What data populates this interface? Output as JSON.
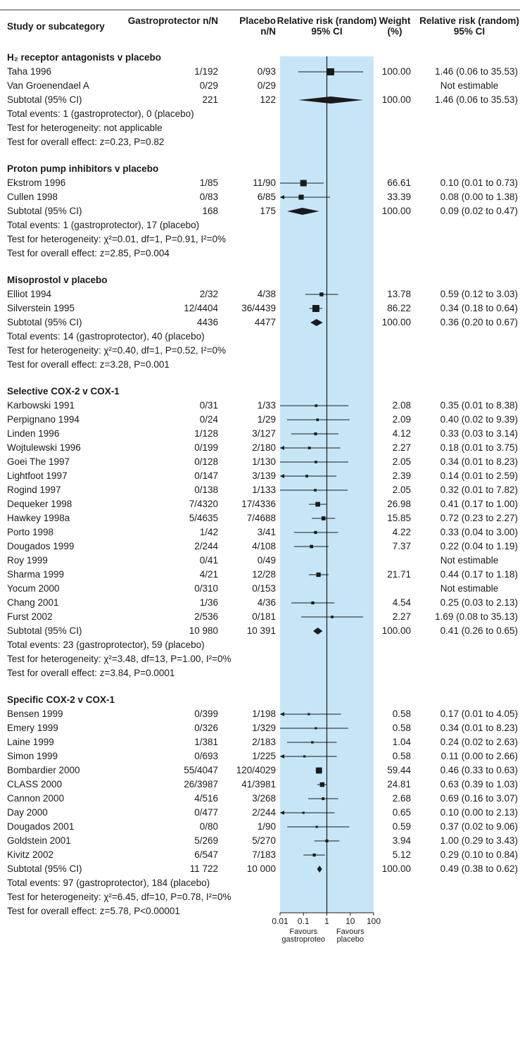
{
  "chart_data": {
    "type": "forest",
    "columns": {
      "study": "Study or subcategory",
      "treat": "Gastroprotector n/N",
      "placebo": "Placebo n/N",
      "plot": "Relative risk (random) 95% CI",
      "weight": "Weight (%)",
      "rr": "Relative risk (random) 95% CI"
    },
    "xaxis": {
      "scale": "log",
      "ticks": [
        "0.01",
        "0.1",
        "1",
        "10",
        "100"
      ],
      "tick_values": [
        0.01,
        0.1,
        1,
        10,
        100
      ],
      "left_label": "Favours gastroproteo",
      "right_label": "Favours placebo"
    },
    "groups": [
      {
        "name": "H₂ receptor antagonists v placebo",
        "studies": [
          {
            "study": "Taha 1996",
            "treat": "1/192",
            "placebo": "0/93",
            "weight": "100.00",
            "rr": "1.46 (0.06 to 35.53)",
            "est": 1.46,
            "lo": 0.06,
            "hi": 35.53,
            "w": 100
          },
          {
            "study": "Van Groenendael A",
            "treat": "0/29",
            "placebo": "0/29",
            "weight": "",
            "rr": "Not estimable",
            "est": null,
            "lo": null,
            "hi": null,
            "w": 0
          }
        ],
        "subtotal": {
          "study": "Subtotal (95% CI)",
          "treat": "221",
          "placebo": "122",
          "weight": "100.00",
          "rr": "1.46 (0.06 to 35.53)",
          "est": 1.46,
          "lo": 0.06,
          "hi": 35.53
        },
        "notes": [
          "Total events: 1 (gastroprotector), 0 (placebo)",
          "Test for heterogeneity: not applicable",
          "Test for overall effect: z=0.23, P=0.82"
        ]
      },
      {
        "name": "Proton pump inhibitors v placebo",
        "studies": [
          {
            "study": "Ekstrom 1996",
            "treat": "1/85",
            "placebo": "11/90",
            "weight": "66.61",
            "rr": "0.10 (0.01 to 0.73)",
            "est": 0.1,
            "lo": 0.01,
            "hi": 0.73,
            "w": 66.61
          },
          {
            "study": "Cullen 1998",
            "treat": "0/83",
            "placebo": "6/85",
            "weight": "33.39",
            "rr": "0.08 (0.00 to 1.38)",
            "est": 0.08,
            "lo": 0.004,
            "hi": 1.38,
            "w": 33.39
          }
        ],
        "subtotal": {
          "study": "Subtotal (95% CI)",
          "treat": "168",
          "placebo": "175",
          "weight": "100.00",
          "rr": "0.09 (0.02 to 0.47)",
          "est": 0.09,
          "lo": 0.02,
          "hi": 0.47
        },
        "notes": [
          "Total events: 1 (gastroprotector), 17 (placebo)",
          "Test for heterogeneity: χ²=0.01, df=1, P=0.91, I²=0%",
          "Test for overall effect: z=2.85, P=0.004"
        ]
      },
      {
        "name": "Misoprostol v placebo",
        "studies": [
          {
            "study": "Elliot 1994",
            "treat": "2/32",
            "placebo": "4/38",
            "weight": "13.78",
            "rr": "0.59 (0.12 to 3.03)",
            "est": 0.59,
            "lo": 0.12,
            "hi": 3.03,
            "w": 13.78
          },
          {
            "study": "Silverstein 1995",
            "treat": "12/4404",
            "placebo": "36/4439",
            "weight": "86.22",
            "rr": "0.34 (0.18 to 0.64)",
            "est": 0.34,
            "lo": 0.18,
            "hi": 0.64,
            "w": 86.22
          }
        ],
        "subtotal": {
          "study": "Subtotal (95% CI)",
          "treat": "4436",
          "placebo": "4477",
          "weight": "100.00",
          "rr": "0.36 (0.20 to 0.67)",
          "est": 0.36,
          "lo": 0.2,
          "hi": 0.67
        },
        "notes": [
          "Total events: 14 (gastroprotector), 40 (placebo)",
          "Test for heterogeneity: χ²=0.40, df=1, P=0.52, I²=0%",
          "Test for overall effect: z=3.28, P=0.001"
        ]
      },
      {
        "name": "Selective COX-2 v COX-1",
        "studies": [
          {
            "study": "Karbowski 1991",
            "treat": "0/31",
            "placebo": "1/33",
            "weight": "2.08",
            "rr": "0.35 (0.01 to 8.38)",
            "est": 0.35,
            "lo": 0.01,
            "hi": 8.38,
            "w": 2.08
          },
          {
            "study": "Perpignano 1994",
            "treat": "0/24",
            "placebo": "1/29",
            "weight": "2.09",
            "rr": "0.40 (0.02 to 9.39)",
            "est": 0.4,
            "lo": 0.02,
            "hi": 9.39,
            "w": 2.09
          },
          {
            "study": "Linden 1996",
            "treat": "1/128",
            "placebo": "3/127",
            "weight": "4.12",
            "rr": "0.33 (0.03 to 3.14)",
            "est": 0.33,
            "lo": 0.03,
            "hi": 3.14,
            "w": 4.12
          },
          {
            "study": "Wojtulewski 1996",
            "treat": "0/199",
            "placebo": "2/180",
            "weight": "2.27",
            "rr": "0.18 (0.01 to 3.75)",
            "est": 0.18,
            "lo": 0.006,
            "hi": 3.75,
            "w": 2.27
          },
          {
            "study": "Goei The 1997",
            "treat": "0/128",
            "placebo": "1/130",
            "weight": "2.05",
            "rr": "0.34 (0.01 to 8.23)",
            "est": 0.34,
            "lo": 0.01,
            "hi": 8.23,
            "w": 2.05
          },
          {
            "study": "Lightfoot 1997",
            "treat": "0/147",
            "placebo": "3/139",
            "weight": "2.39",
            "rr": "0.14 (0.01 to 2.59)",
            "est": 0.14,
            "lo": 0.006,
            "hi": 2.59,
            "w": 2.39
          },
          {
            "study": "Rogind 1997",
            "treat": "0/138",
            "placebo": "1/133",
            "weight": "2.05",
            "rr": "0.32 (0.01 to 7.82)",
            "est": 0.32,
            "lo": 0.01,
            "hi": 7.82,
            "w": 2.05
          },
          {
            "study": "Dequeker 1998",
            "treat": "7/4320",
            "placebo": "17/4336",
            "weight": "26.98",
            "rr": "0.41 (0.17 to 1.00)",
            "est": 0.41,
            "lo": 0.17,
            "hi": 1.0,
            "w": 26.98
          },
          {
            "study": "Hawkey 1998a",
            "treat": "5/4635",
            "placebo": "7/4688",
            "weight": "15.85",
            "rr": "0.72 (0.23 to 2.27)",
            "est": 0.72,
            "lo": 0.23,
            "hi": 2.27,
            "w": 15.85
          },
          {
            "study": "Porto 1998",
            "treat": "1/42",
            "placebo": "3/41",
            "weight": "4.22",
            "rr": "0.33 (0.04 to 3.00)",
            "est": 0.33,
            "lo": 0.04,
            "hi": 3.0,
            "w": 4.22
          },
          {
            "study": "Dougados 1999",
            "treat": "2/244",
            "placebo": "4/108",
            "weight": "7.37",
            "rr": "0.22 (0.04 to 1.19)",
            "est": 0.22,
            "lo": 0.04,
            "hi": 1.19,
            "w": 7.37
          },
          {
            "study": "Roy 1999",
            "treat": "0/41",
            "placebo": "0/49",
            "weight": "",
            "rr": "Not estimable",
            "est": null,
            "lo": null,
            "hi": null,
            "w": 0
          },
          {
            "study": "Sharma 1999",
            "treat": "4/21",
            "placebo": "12/28",
            "weight": "21.71",
            "rr": "0.44 (0.17 to 1.18)",
            "est": 0.44,
            "lo": 0.17,
            "hi": 1.18,
            "w": 21.71
          },
          {
            "study": "Yocum 2000",
            "treat": "0/310",
            "placebo": "0/153",
            "weight": "",
            "rr": "Not estimable",
            "est": null,
            "lo": null,
            "hi": null,
            "w": 0
          },
          {
            "study": "Chang 2001",
            "treat": "1/36",
            "placebo": "4/36",
            "weight": "4.54",
            "rr": "0.25 (0.03 to 2.13)",
            "est": 0.25,
            "lo": 0.03,
            "hi": 2.13,
            "w": 4.54
          },
          {
            "study": "Furst 2002",
            "treat": "2/536",
            "placebo": "0/181",
            "weight": "2.27",
            "rr": "1.69 (0.08 to 35.13)",
            "est": 1.69,
            "lo": 0.08,
            "hi": 35.13,
            "w": 2.27
          }
        ],
        "subtotal": {
          "study": "Subtotal (95% CI)",
          "treat": "10 980",
          "placebo": "10 391",
          "weight": "100.00",
          "rr": "0.41 (0.26 to 0.65)",
          "est": 0.41,
          "lo": 0.26,
          "hi": 0.65
        },
        "notes": [
          "Total events: 23 (gastroprotector), 59 (placebo)",
          "Test for heterogeneity: χ²=3.48, df=13, P=1.00, I²=0%",
          "Test for overall effect: z=3.84, P=0.0001"
        ]
      },
      {
        "name": "Specific COX-2 v COX-1",
        "studies": [
          {
            "study": "Bensen 1999",
            "treat": "0/399",
            "placebo": "1/198",
            "weight": "0.58",
            "rr": "0.17 (0.01 to 4.05)",
            "est": 0.17,
            "lo": 0.006,
            "hi": 4.05,
            "w": 0.58
          },
          {
            "study": "Emery 1999",
            "treat": "0/326",
            "placebo": "1/329",
            "weight": "0.58",
            "rr": "0.34 (0.01 to 8.23)",
            "est": 0.34,
            "lo": 0.01,
            "hi": 8.23,
            "w": 0.58
          },
          {
            "study": "Laine 1999",
            "treat": "1/381",
            "placebo": "2/183",
            "weight": "1.04",
            "rr": "0.24 (0.02 to 2.63)",
            "est": 0.24,
            "lo": 0.02,
            "hi": 2.63,
            "w": 1.04
          },
          {
            "study": "Simon 1999",
            "treat": "0/693",
            "placebo": "1/225",
            "weight": "0.58",
            "rr": "0.11 (0.00 to 2.66)",
            "est": 0.11,
            "lo": 0.004,
            "hi": 2.66,
            "w": 0.58
          },
          {
            "study": "Bombardier 2000",
            "treat": "55/4047",
            "placebo": "120/4029",
            "weight": "59.44",
            "rr": "0.46 (0.33 to 0.63)",
            "est": 0.46,
            "lo": 0.33,
            "hi": 0.63,
            "w": 59.44
          },
          {
            "study": "CLASS 2000",
            "treat": "26/3987",
            "placebo": "41/3981",
            "weight": "24.81",
            "rr": "0.63 (0.39 to 1.03)",
            "est": 0.63,
            "lo": 0.39,
            "hi": 1.03,
            "w": 24.81
          },
          {
            "study": "Cannon 2000",
            "treat": "4/516",
            "placebo": "3/268",
            "weight": "2.68",
            "rr": "0.69 (0.16 to 3.07)",
            "est": 0.69,
            "lo": 0.16,
            "hi": 3.07,
            "w": 2.68
          },
          {
            "study": "Day 2000",
            "treat": "0/477",
            "placebo": "2/244",
            "weight": "0.65",
            "rr": "0.10 (0.00 to 2.13)",
            "est": 0.1,
            "lo": 0.004,
            "hi": 2.13,
            "w": 0.65
          },
          {
            "study": "Dougados 2001",
            "treat": "0/80",
            "placebo": "1/90",
            "weight": "0.59",
            "rr": "0.37 (0.02 to 9.06)",
            "est": 0.37,
            "lo": 0.02,
            "hi": 9.06,
            "w": 0.59
          },
          {
            "study": "Goldstein 2001",
            "treat": "5/269",
            "placebo": "5/270",
            "weight": "3.94",
            "rr": "1.00 (0.29 to 3.43)",
            "est": 1.0,
            "lo": 0.29,
            "hi": 3.43,
            "w": 3.94
          },
          {
            "study": "Kivitz 2002",
            "treat": "6/547",
            "placebo": "7/183",
            "weight": "5.12",
            "rr": "0.29 (0.10 to 0.84)",
            "est": 0.29,
            "lo": 0.1,
            "hi": 0.84,
            "w": 5.12
          }
        ],
        "subtotal": {
          "study": "Subtotal (95% CI)",
          "treat": "11 722",
          "placebo": "10 000",
          "weight": "100.00",
          "rr": "0.49 (0.38 to 0.62)",
          "est": 0.49,
          "lo": 0.38,
          "hi": 0.62
        },
        "notes": [
          "Total events: 97 (gastroprotector), 184 (placebo)",
          "Test for heterogeneity: χ²=6.45, df=10, P=0.78, I²=0%",
          "Test for overall effect: z=5.78, P<0.00001"
        ]
      }
    ]
  },
  "colors": {
    "panel": "#c6e6f7",
    "ink": "#1a1a1a",
    "rule": "#333333"
  }
}
